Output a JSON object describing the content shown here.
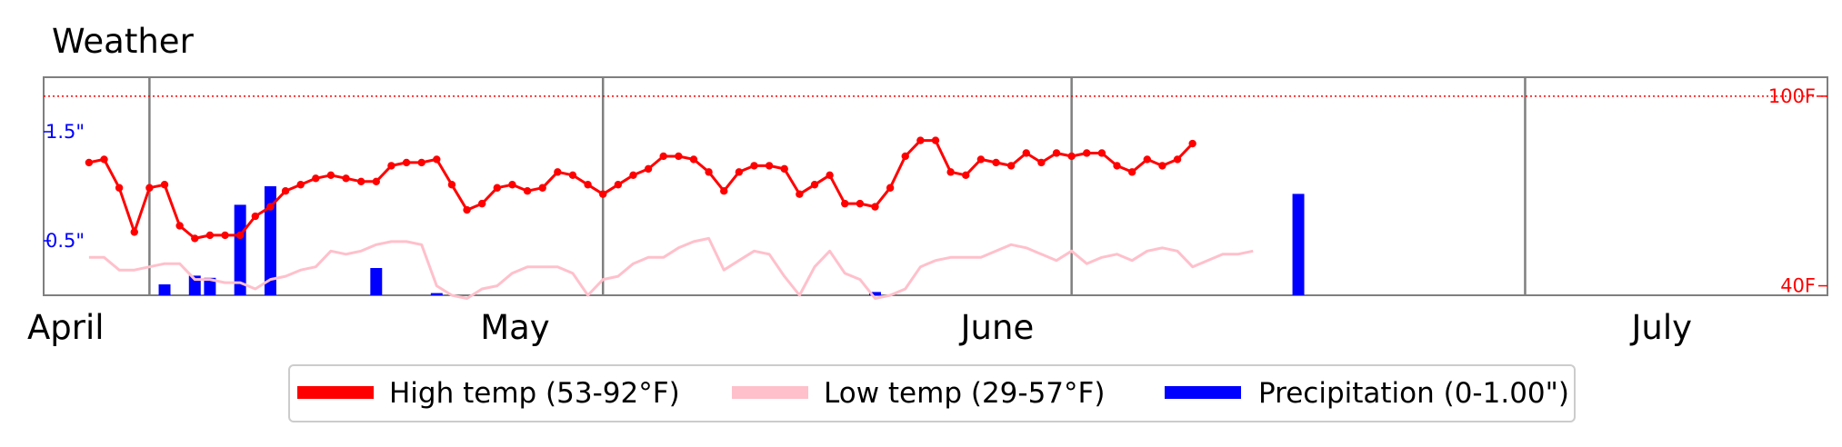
{
  "chart_data": {
    "type": "line",
    "title": "Weather",
    "x_start": "2012-03-25",
    "x_end": "2012-07-21",
    "month_labels": [
      {
        "label": "April",
        "date": "2012-04-01"
      },
      {
        "label": "May",
        "date": "2012-05-01"
      },
      {
        "label": "June",
        "date": "2012-06-01"
      },
      {
        "label": "July",
        "date": "2012-07-01"
      }
    ],
    "month_dividers": [
      "2012-04-01",
      "2012-05-01",
      "2012-06-01",
      "2012-07-01"
    ],
    "temp_axis": {
      "unit": "F",
      "ylim": [
        37,
        106
      ],
      "tick_labels": [
        "100F",
        "40F"
      ],
      "tick_values": [
        100,
        40
      ],
      "reference_line": 100
    },
    "precip_axis": {
      "unit": "in",
      "ylim": [
        0,
        2.0
      ],
      "tick_labels": [
        "1.5\"",
        "0.5\""
      ],
      "tick_values": [
        1.5,
        0.5
      ]
    },
    "series": [
      {
        "name": "High temp (53-92°F)",
        "color": "#ff0000",
        "marker": "dot",
        "x_start": "2012-03-28",
        "step_days": 1,
        "values": [
          79,
          80,
          71,
          57,
          71,
          72,
          59,
          55,
          56,
          56,
          56,
          62,
          65,
          70,
          72,
          74,
          75,
          74,
          73,
          73,
          78,
          79,
          79,
          80,
          72,
          64,
          66,
          71,
          72,
          70,
          71,
          76,
          75,
          72,
          69,
          72,
          75,
          77,
          81,
          81,
          80,
          76,
          70,
          76,
          78,
          78,
          77,
          69,
          72,
          75,
          66,
          66,
          65,
          71,
          81,
          86,
          86,
          76,
          75,
          80,
          79,
          78,
          82,
          79,
          82,
          81,
          82,
          82,
          78,
          76,
          80,
          78,
          80,
          85
        ]
      },
      {
        "name": "Low temp (29-57°F)",
        "color": "#ffc0cb",
        "marker": "none",
        "x_start": "2012-03-28",
        "step_days": 1,
        "values": [
          49,
          49,
          45,
          45,
          46,
          47,
          47,
          42,
          42,
          41,
          41,
          39,
          42,
          43,
          45,
          46,
          51,
          50,
          51,
          53,
          54,
          54,
          53,
          40,
          37,
          36,
          39,
          40,
          44,
          46,
          46,
          46,
          44,
          37,
          42,
          43,
          47,
          49,
          49,
          52,
          54,
          55,
          45,
          48,
          51,
          50,
          43,
          37,
          46,
          51,
          44,
          42,
          36,
          37,
          39,
          46,
          48,
          49,
          49,
          49,
          51,
          53,
          52,
          50,
          48,
          51,
          47,
          49,
          50,
          48,
          51,
          52,
          51,
          46,
          48,
          50,
          50,
          51
        ]
      },
      {
        "name": "Precipitation (0-1.00\")",
        "color": "#0000ff",
        "type": "bar",
        "points": [
          {
            "date": "2012-04-02",
            "value": 0.1
          },
          {
            "date": "2012-04-04",
            "value": 0.18
          },
          {
            "date": "2012-04-05",
            "value": 0.16
          },
          {
            "date": "2012-04-07",
            "value": 0.83
          },
          {
            "date": "2012-04-09",
            "value": 1.0
          },
          {
            "date": "2012-04-16",
            "value": 0.25
          },
          {
            "date": "2012-04-20",
            "value": 0.02
          },
          {
            "date": "2012-05-19",
            "value": 0.03
          },
          {
            "date": "2012-06-16",
            "value": 0.93
          }
        ]
      }
    ],
    "legend": {
      "position": "bottom-center"
    }
  }
}
